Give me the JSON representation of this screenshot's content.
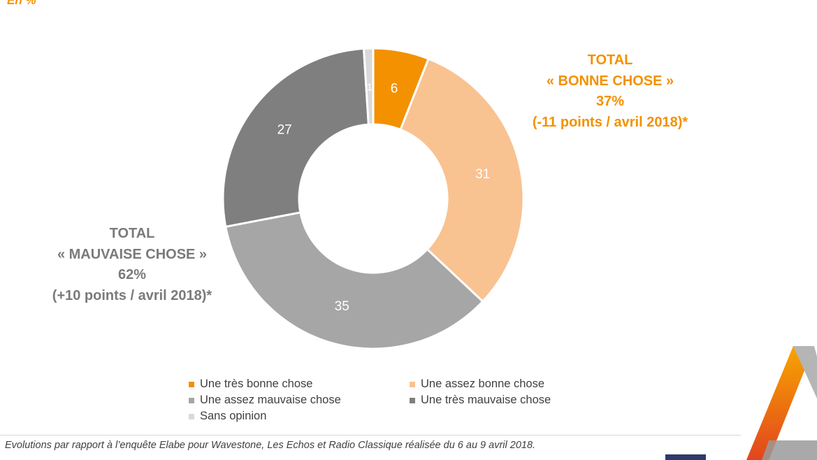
{
  "page": {
    "unit_label": "En %",
    "footnote": "Evolutions par rapport à l’enquête Elabe pour Wavestone, Les Echos et Radio Classique réalisée du 6 au 9 avril 2018."
  },
  "totals": {
    "good": {
      "heading": "TOTAL",
      "label": "« BONNE CHOSE »",
      "value": "37%",
      "delta": "(-11 points / avril 2018)*",
      "color": "#f39100"
    },
    "bad": {
      "heading": "TOTAL",
      "label": "« MAUVAISE CHOSE »",
      "value": "62%",
      "delta": "(+10 points / avril 2018)*",
      "color": "#7a7a7a"
    }
  },
  "chart_data": {
    "type": "donut",
    "unit": "%",
    "slices": [
      {
        "label": "Une très bonne chose",
        "value": 6,
        "color": "#f39100",
        "label_color": "#ffffff"
      },
      {
        "label": "Une assez bonne chose",
        "value": 31,
        "color": "#f9c291",
        "label_color": "#ffffff"
      },
      {
        "label": "Une assez mauvaise chose",
        "value": 35,
        "color": "#a6a6a6",
        "label_color": "#ffffff"
      },
      {
        "label": "Une très mauvaise chose",
        "value": 27,
        "color": "#7f7f7f",
        "label_color": "#ffffff"
      },
      {
        "label": "Sans opinion",
        "value": 1,
        "color": "#d9d9d9",
        "label_color": "#ffffff"
      }
    ],
    "legend_order": [
      0,
      1,
      2,
      3,
      4
    ],
    "legend_position": "bottom"
  }
}
